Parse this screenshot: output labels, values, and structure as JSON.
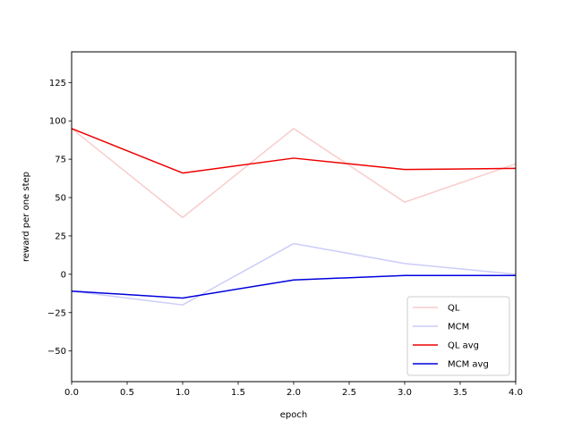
{
  "chart_data": {
    "type": "line",
    "xlabel": "epoch",
    "ylabel": "reward per one step",
    "xlim": [
      0,
      4
    ],
    "ylim": [
      -70,
      145
    ],
    "x": [
      0,
      1,
      2,
      3,
      4
    ],
    "xticks": [
      0,
      0.5,
      1,
      1.5,
      2,
      2.5,
      3,
      3.5,
      4
    ],
    "xtick_labels": [
      "0.0",
      "0.5",
      "1.0",
      "1.5",
      "2.0",
      "2.5",
      "3.0",
      "3.5",
      "4.0"
    ],
    "yticks": [
      -50,
      -25,
      0,
      25,
      50,
      75,
      100,
      125
    ],
    "ytick_labels": [
      "−50",
      "−25",
      "0",
      "25",
      "50",
      "75",
      "100",
      "125"
    ],
    "grid": false,
    "legend_position": "lower-right",
    "series": [
      {
        "name": "QL",
        "color": "#f9cccc",
        "values": [
          95,
          37,
          95,
          47,
          72
        ]
      },
      {
        "name": "MCM",
        "color": "#ccccf9",
        "values": [
          -11,
          -20,
          20,
          7,
          0
        ]
      },
      {
        "name": "QL avg",
        "color": "#ee0000",
        "values": [
          95,
          66,
          75.7,
          68.3,
          69
        ]
      },
      {
        "name": "MCM avg",
        "color": "#0000dd",
        "values": [
          -11,
          -15.5,
          -3.7,
          -0.8,
          -0.8
        ]
      }
    ]
  }
}
